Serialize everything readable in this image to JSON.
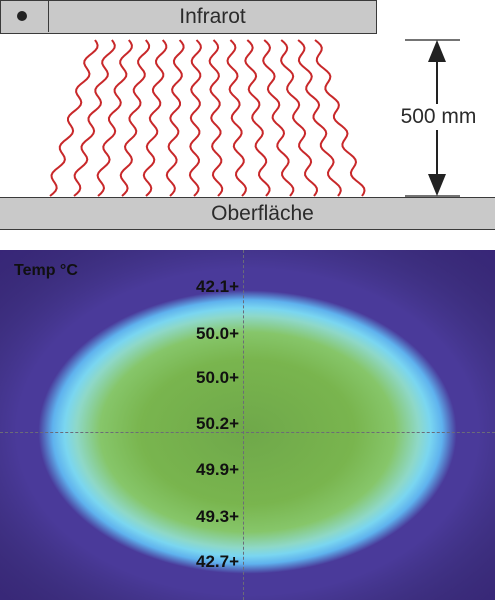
{
  "emitter": {
    "label": "Infrarot"
  },
  "surface": {
    "label": "Oberfläche"
  },
  "distance": {
    "label": "500 mm"
  },
  "thermal": {
    "title": "Temp °C",
    "readings": [
      "42.1+",
      "50.0+",
      "50.0+",
      "50.2+",
      "49.9+",
      "49.3+",
      "42.7+"
    ]
  },
  "colors": {
    "wave": "#c8282a",
    "bar_fill": "#c9c9c9",
    "bar_stroke": "#3a3a3a",
    "thermal_hot": "#79b54e",
    "thermal_edge": "#7ad6f0",
    "thermal_cold": "#4a3a9a"
  },
  "icons": {
    "emitter_dot": "dot-icon",
    "arrow": "double-arrow-icon"
  }
}
